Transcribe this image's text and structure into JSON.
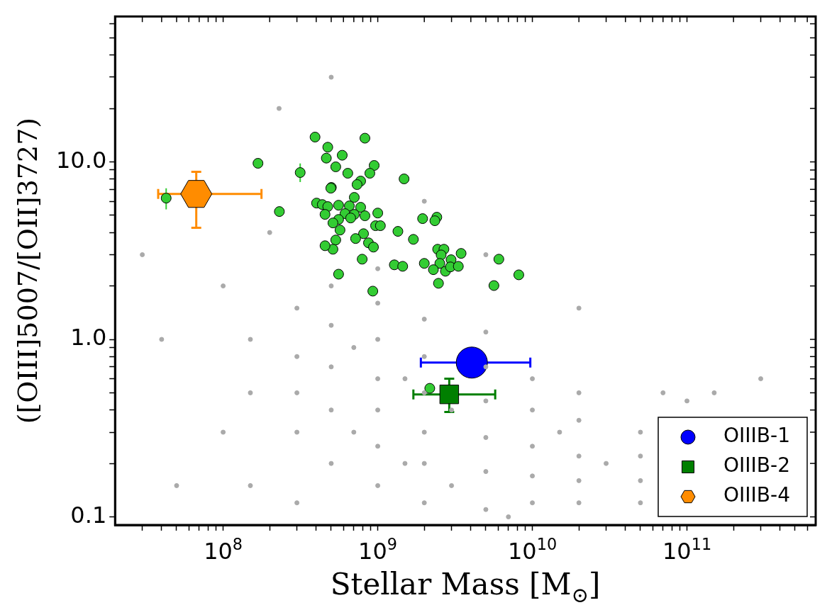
{
  "chart_data": {
    "type": "scatter",
    "xlabel": "Stellar Mass [M$_{⊙}$]",
    "ylabel": "([OIII]5007/[OII]3727)",
    "log": "xy",
    "legend": "bottom right",
    "xlim": [
      20000000.0,
      680000000000.0
    ],
    "ylim": [
      0.09,
      66
    ],
    "xticks": [
      {
        "value": 30000000.0,
        "label": null
      },
      {
        "value": 40000000.0,
        "label": null
      },
      {
        "value": 50000000.0,
        "label": null
      },
      {
        "value": 60000000.0,
        "label": null
      },
      {
        "value": 70000000.0,
        "label": null
      },
      {
        "value": 80000000.0,
        "label": null
      },
      {
        "value": 90000000.0,
        "label": null
      },
      {
        "value": 100000000.0,
        "label": "10$^{8}$"
      },
      {
        "value": 200000000.0,
        "label": null
      },
      {
        "value": 300000000.0,
        "label": null
      },
      {
        "value": 400000000.0,
        "label": null
      },
      {
        "value": 500000000.0,
        "label": null
      },
      {
        "value": 600000000.0,
        "label": null
      },
      {
        "value": 700000000.0,
        "label": null
      },
      {
        "value": 800000000.0,
        "label": null
      },
      {
        "value": 900000000.0,
        "label": null
      },
      {
        "value": 1000000000.0,
        "label": "10$^{9}$"
      },
      {
        "value": 2000000000.0,
        "label": null
      },
      {
        "value": 3000000000.0,
        "label": null
      },
      {
        "value": 4000000000.0,
        "label": null
      },
      {
        "value": 5000000000.0,
        "label": null
      },
      {
        "value": 6000000000.0,
        "label": null
      },
      {
        "value": 7000000000.0,
        "label": null
      },
      {
        "value": 8000000000.0,
        "label": null
      },
      {
        "value": 9000000000.0,
        "label": null
      },
      {
        "value": 10000000000.0,
        "label": "10$^{10}$"
      },
      {
        "value": 20000000000.0,
        "label": null
      },
      {
        "value": 30000000000.0,
        "label": null
      },
      {
        "value": 40000000000.0,
        "label": null
      },
      {
        "value": 50000000000.0,
        "label": null
      },
      {
        "value": 60000000000.0,
        "label": null
      },
      {
        "value": 70000000000.0,
        "label": null
      },
      {
        "value": 80000000000.0,
        "label": null
      },
      {
        "value": 90000000000.0,
        "label": null
      },
      {
        "value": 100000000000.0,
        "label": "10$^{11}$"
      },
      {
        "value": 200000000000.0,
        "label": null
      },
      {
        "value": 300000000000.0,
        "label": null
      },
      {
        "value": 400000000000.0,
        "label": null
      },
      {
        "value": 500000000000.0,
        "label": null
      },
      {
        "value": 600000000000.0,
        "label": null
      }
    ],
    "yticks": [
      {
        "value": 0.1,
        "label": "0.1"
      },
      {
        "value": 0.2,
        "label": null
      },
      {
        "value": 0.3,
        "label": null
      },
      {
        "value": 0.4,
        "label": null
      },
      {
        "value": 0.5,
        "label": null
      },
      {
        "value": 0.6,
        "label": null
      },
      {
        "value": 0.7,
        "label": null
      },
      {
        "value": 0.8,
        "label": null
      },
      {
        "value": 0.9,
        "label": null
      },
      {
        "value": 1,
        "label": "1.0"
      },
      {
        "value": 2,
        "label": null
      },
      {
        "value": 3,
        "label": null
      },
      {
        "value": 4,
        "label": null
      },
      {
        "value": 5,
        "label": null
      },
      {
        "value": 6,
        "label": null
      },
      {
        "value": 7,
        "label": null
      },
      {
        "value": 8,
        "label": null
      },
      {
        "value": 9,
        "label": null
      },
      {
        "value": 10,
        "label": "10.0"
      },
      {
        "value": 20,
        "label": null
      },
      {
        "value": 30,
        "label": null
      },
      {
        "value": 40,
        "label": null
      },
      {
        "value": 50,
        "label": null
      },
      {
        "value": 60,
        "label": null
      }
    ],
    "series": [
      {
        "color": "#aaaaaa",
        "marker": "circle",
        "x": [
          300000000.0,
          300000000.0,
          300000000.0,
          300000000.0,
          500000000.0,
          500000000.0,
          500000000.0,
          500000000.0,
          500000000.0,
          1000000000.0,
          1000000000.0,
          1000000000.0,
          1000000000.0,
          1000000000.0,
          1000000000.0,
          1000000000.0,
          2000000000.0,
          2000000000.0,
          2000000000.0,
          2000000000.0,
          2000000000.0,
          2000000000.0,
          5000000000.0,
          5000000000.0,
          5000000000.0,
          5000000000.0,
          5000000000.0,
          5000000000.0,
          10000000000.0,
          10000000000.0,
          10000000000.0,
          10000000000.0,
          10000000000.0,
          20000000000.0,
          20000000000.0,
          20000000000.0,
          20000000000.0,
          20000000000.0,
          50000000000.0,
          50000000000.0,
          50000000000.0,
          50000000000.0,
          100000000000.0,
          150000000000.0,
          150000000.0,
          150000000.0,
          100000000.0,
          100000000.0,
          50000000.0,
          40000000.0,
          30000000.0,
          200000000.0,
          230000000.0,
          500000000.0,
          2000000000.0,
          5000000000.0,
          20000000000.0,
          300000000000.0,
          150000000.0,
          300000000.0,
          7000000000.0,
          70000000000.0,
          700000000.0,
          700000000.0,
          1500000000.0,
          1500000000.0,
          3000000000.0,
          3000000000.0,
          15000000000.0,
          30000000000.0
        ],
        "values": [
          0.3,
          0.5,
          0.8,
          1.5,
          0.2,
          0.4,
          0.7,
          1.2,
          2,
          0.15,
          0.25,
          0.4,
          0.6,
          1,
          1.6,
          2.5,
          0.12,
          0.2,
          0.3,
          0.5,
          0.8,
          1.3,
          0.11,
          0.18,
          0.28,
          0.45,
          0.7,
          1.1,
          0.12,
          0.17,
          0.25,
          0.4,
          0.6,
          0.12,
          0.16,
          0.22,
          0.35,
          0.5,
          0.12,
          0.16,
          0.22,
          0.3,
          0.45,
          0.5,
          0.5,
          1,
          0.3,
          2,
          0.15,
          1,
          3,
          4,
          20,
          30,
          6,
          3,
          1.5,
          0.6,
          0.15,
          0.12,
          0.1,
          0.5,
          0.3,
          0.9,
          0.2,
          0.6,
          0.15,
          0.4,
          0.3,
          0.2
        ]
      },
      {
        "color": "#33cc33",
        "marker": "circle",
        "x": [
          826000000.0,
          589000000.0,
          535000000.0,
          640000000.0,
          948000000.0,
          889000000.0,
          775000000.0,
          735000000.0,
          1480000000.0,
          501000000.0,
          705000000.0,
          558000000.0,
          655000000.0,
          775000000.0,
          614000000.0,
          705000000.0,
          826000000.0,
          1000000000.0,
          558000000.0,
          668000000.0,
          513000000.0,
          968000000.0,
          1040000000.0,
          570000000.0,
          809000000.0,
          1350000000.0,
          535000000.0,
          719000000.0,
          871000000.0,
          938000000.0,
          1700000000.0,
          1950000000.0,
          2410000000.0,
          2340000000.0,
          513000000.0,
          793000000.0,
          1280000000.0,
          1450000000.0,
          2000000000.0,
          2440000000.0,
          2680000000.0,
          2570000000.0,
          3460000000.0,
          2980000000.0,
          2520000000.0,
          2290000000.0,
          2740000000.0,
          2950000000.0,
          3320000000.0,
          6070000000.0,
          8170000000.0,
          2470000000.0,
          5640000000.0,
          558000000.0,
          929000000.0,
          393000000.0,
          475000000.0,
          465000000.0,
          168000000.0,
          315000000.0,
          497000000.0,
          402000000.0,
          438000000.0,
          475000000.0,
          456000000.0,
          456000000.0,
          231000000.0,
          42800000.0,
          2170000000.0
        ],
        "values": [
          13.6,
          10.9,
          9.38,
          8.63,
          9.55,
          8.63,
          7.8,
          7.45,
          8.02,
          7.18,
          6.31,
          5.7,
          5.65,
          5.55,
          5.11,
          5.06,
          4.97,
          5.15,
          4.74,
          4.83,
          4.53,
          4.37,
          4.37,
          4.13,
          3.94,
          4.06,
          3.63,
          3.7,
          3.5,
          3.31,
          3.66,
          4.79,
          4.88,
          4.66,
          3.22,
          2.83,
          2.63,
          2.58,
          2.68,
          3.22,
          3.22,
          2.99,
          3.05,
          2.81,
          2.68,
          2.47,
          2.42,
          2.56,
          2.58,
          2.83,
          2.31,
          2.07,
          2.01,
          2.33,
          1.87,
          13.8,
          12.1,
          10.5,
          9.82,
          8.71,
          7.11,
          5.86,
          5.75,
          5.6,
          5.06,
          3.37,
          5.25,
          6.25,
          0.53
        ],
        "errors": [
          null,
          null,
          null,
          null,
          null,
          null,
          null,
          null,
          null,
          null,
          null,
          null,
          null,
          null,
          null,
          null,
          null,
          null,
          null,
          null,
          null,
          null,
          null,
          null,
          null,
          null,
          null,
          null,
          null,
          null,
          null,
          null,
          null,
          null,
          null,
          null,
          null,
          null,
          null,
          null,
          null,
          null,
          null,
          null,
          null,
          null,
          null,
          null,
          null,
          null,
          null,
          null,
          null,
          null,
          null,
          null,
          null,
          null,
          null,
          [
            7.7,
            9.8
          ],
          null,
          null,
          null,
          null,
          null,
          null,
          null,
          [
            5.4,
            7.1
          ],
          null
        ]
      },
      {
        "name": "OIIIB-1",
        "color": "#0000ff",
        "marker": "circle",
        "x": [
          4060000000.0
        ],
        "values": [
          0.74
        ],
        "xerrors": [
          [
            1900000000.0,
            9700000000.0
          ]
        ]
      },
      {
        "name": "OIIIB-2",
        "color": "#007f00",
        "marker": "square",
        "x": [
          2900000000.0
        ],
        "values": [
          0.49
        ],
        "xerrors": [
          [
            1700000000.0,
            5750000000.0
          ]
        ],
        "errors": [
          [
            0.39,
            0.6
          ]
        ]
      },
      {
        "name": "OIIIB-4",
        "color": "#ff8c00",
        "x": [
          67000000.0
        ],
        "values": [
          6.6
        ],
        "xerrors": [
          [
            38000000.0,
            177000000.0
          ]
        ],
        "errors": [
          [
            4.25,
            8.8
          ]
        ]
      }
    ]
  }
}
